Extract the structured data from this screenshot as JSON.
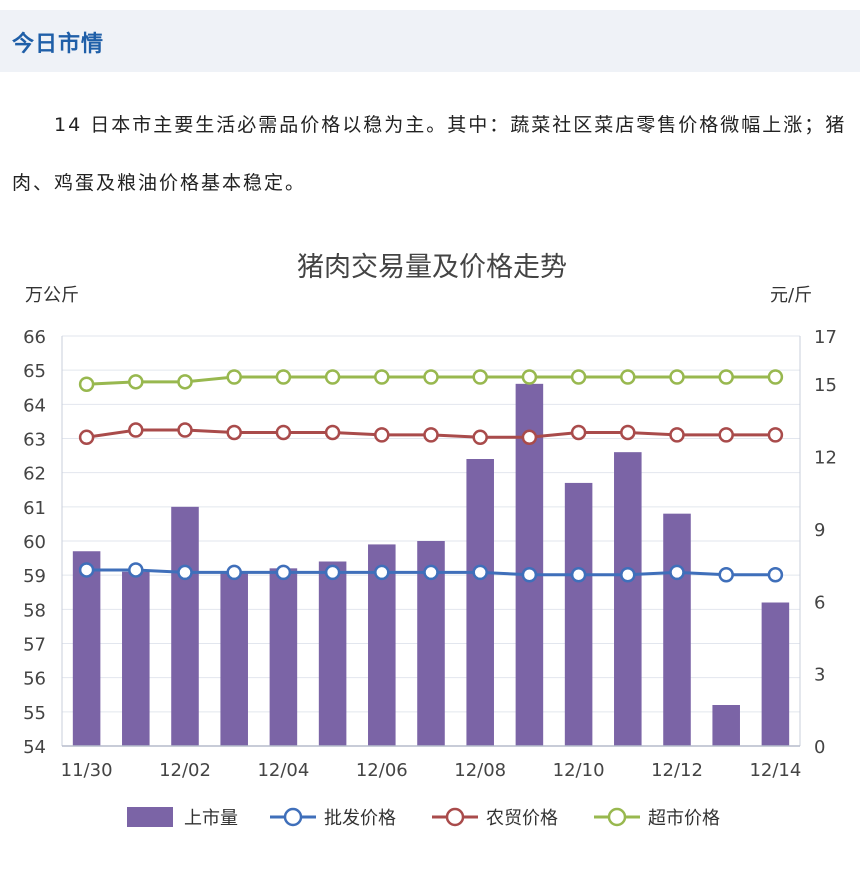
{
  "header": {
    "title": "今日市情"
  },
  "article": {
    "paragraph": "14 日本市主要生活必需品价格以稳为主。其中：蔬菜社区菜店零售价格微幅上涨；猪肉、鸡蛋及粮油价格基本稳定。"
  },
  "colors": {
    "bar": "#7b64a6",
    "wholesale": "#3f6fba",
    "farmers_market": "#a94b4b",
    "supermarket": "#98b84f",
    "header_bg": "#eff2f7",
    "header_text": "#1f5fa8"
  },
  "chart_data": {
    "type": "bar",
    "title": "猪肉交易量及价格走势",
    "y_left_label": "万公斤",
    "y_right_label": "元/斤",
    "ylim_left": [
      54,
      66
    ],
    "ylim_right": [
      0,
      17
    ],
    "y_left_ticks": [
      "54",
      "55",
      "56",
      "57",
      "58",
      "59",
      "60",
      "61",
      "62",
      "63",
      "64",
      "65",
      "66"
    ],
    "y_right_ticks": [
      "0",
      "3",
      "6",
      "9",
      "12",
      "15",
      "17"
    ],
    "x_tick_labels": [
      "11/30",
      "12/02",
      "12/04",
      "12/06",
      "12/08",
      "12/10",
      "12/12",
      "12/14"
    ],
    "categories": [
      "11/30",
      "12/01",
      "12/02",
      "12/03",
      "12/04",
      "12/05",
      "12/06",
      "12/07",
      "12/08",
      "12/09",
      "12/10",
      "12/11",
      "12/12",
      "12/13",
      "12/14"
    ],
    "grid": true,
    "legend_position": "bottom",
    "bar_series": {
      "name": "上市量",
      "axis": "left",
      "values": [
        59.7,
        59.1,
        61.0,
        59.1,
        59.2,
        59.4,
        59.9,
        60.0,
        62.4,
        64.6,
        61.7,
        62.6,
        60.8,
        55.2,
        58.2
      ]
    },
    "line_series": [
      {
        "name": "批发价格",
        "axis": "right",
        "values": [
          7.3,
          7.3,
          7.2,
          7.2,
          7.2,
          7.2,
          7.2,
          7.2,
          7.2,
          7.1,
          7.1,
          7.1,
          7.2,
          7.1,
          7.1
        ]
      },
      {
        "name": "农贸价格",
        "axis": "right",
        "values": [
          12.8,
          13.1,
          13.1,
          13.0,
          13.0,
          13.0,
          12.9,
          12.9,
          12.8,
          12.8,
          13.0,
          13.0,
          12.9,
          12.9,
          12.9
        ]
      },
      {
        "name": "超市价格",
        "axis": "right",
        "values": [
          15.0,
          15.1,
          15.1,
          15.3,
          15.3,
          15.3,
          15.3,
          15.3,
          15.3,
          15.3,
          15.3,
          15.3,
          15.3,
          15.3,
          15.3
        ]
      }
    ]
  }
}
